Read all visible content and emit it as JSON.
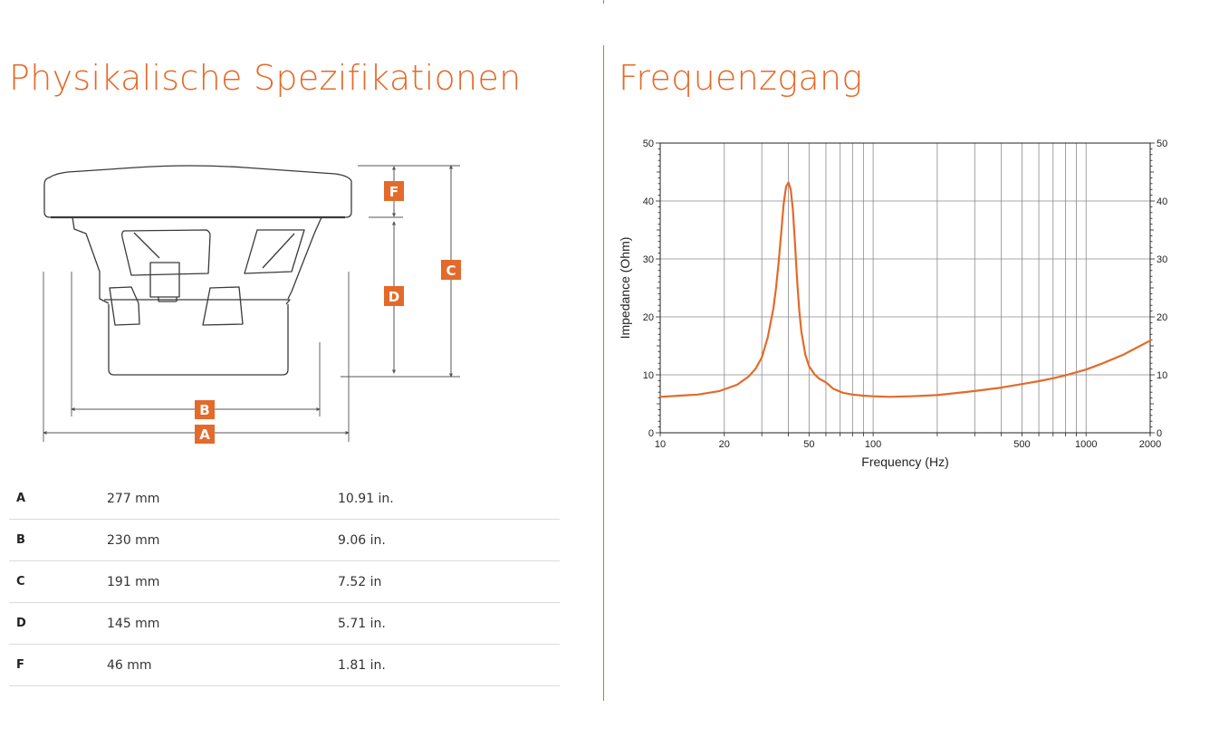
{
  "left_section": {
    "title": "Physikalische Spezifikationen"
  },
  "right_section": {
    "title": "Frequenzgang"
  },
  "colors": {
    "accent": "#e36a2a",
    "drawing": "#3a3a3a",
    "grid": "#8a8a8a"
  },
  "diagram": {
    "labels": {
      "a": "A",
      "b": "B",
      "c": "C",
      "d": "D",
      "f": "F"
    }
  },
  "specs": [
    {
      "label": "A",
      "mm": "277 mm",
      "inch": "10.91 in."
    },
    {
      "label": "B",
      "mm": "230 mm",
      "inch": "9.06 in."
    },
    {
      "label": "C",
      "mm": "191 mm",
      "inch": "7.52 in"
    },
    {
      "label": "D",
      "mm": "145 mm",
      "inch": "5.71 in."
    },
    {
      "label": "F",
      "mm": "46 mm",
      "inch": "1.81 in."
    }
  ],
  "chart_data": {
    "type": "line",
    "xlabel": "Frequency (Hz)",
    "ylabel": "Impedance (Ohm)",
    "xscale": "log",
    "xlim": [
      10,
      2000
    ],
    "ylim": [
      0,
      50
    ],
    "xticks": [
      10,
      20,
      50,
      100,
      500,
      1000,
      2000
    ],
    "yticks": [
      0,
      10,
      20,
      30,
      40,
      50
    ],
    "right_axis_ticks": true,
    "grid": true,
    "series": [
      {
        "color": "#e36a2a",
        "x": [
          10,
          15,
          19,
          23,
          26,
          28,
          30,
          32,
          34,
          35,
          36,
          37,
          38,
          39,
          40,
          41,
          42,
          43,
          44,
          45,
          46,
          48,
          50,
          53,
          56,
          60,
          65,
          72,
          80,
          90,
          100,
          120,
          150,
          200,
          300,
          400,
          500,
          600,
          700,
          800,
          1000,
          1200,
          1500,
          2000
        ],
        "y": [
          6.2,
          6.6,
          7.2,
          8.3,
          9.7,
          11.0,
          13.0,
          16.5,
          21.5,
          25.0,
          29.5,
          34.5,
          39.5,
          42.5,
          43.2,
          42.0,
          38.5,
          32.5,
          26.0,
          21.0,
          17.5,
          13.5,
          11.5,
          10.1,
          9.3,
          8.7,
          7.6,
          6.9,
          6.6,
          6.4,
          6.3,
          6.2,
          6.3,
          6.5,
          7.2,
          7.8,
          8.4,
          8.9,
          9.4,
          9.9,
          10.9,
          12.0,
          13.5,
          15.9
        ]
      }
    ]
  }
}
